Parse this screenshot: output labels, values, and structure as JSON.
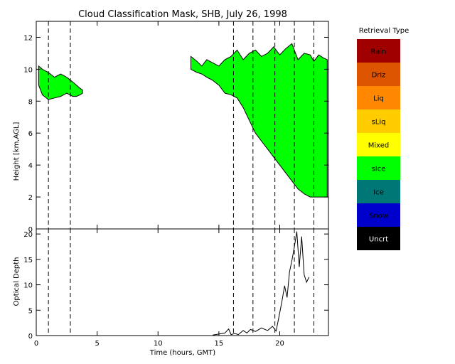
{
  "chart_data": [
    {
      "type": "area",
      "title": "Cloud Classification Mask, SHB, July 26, 1998",
      "ylabel": "Height [km,AGL]",
      "xlim": [
        0,
        24
      ],
      "ylim": [
        0,
        13
      ],
      "xticks": [
        0,
        5,
        10,
        15,
        20
      ],
      "yticks": [
        0,
        2,
        4,
        6,
        8,
        10,
        12
      ],
      "vlines": [
        1.0,
        2.8,
        16.2,
        17.8,
        19.6,
        21.2,
        22.8
      ],
      "legend": {
        "title": "Retrieval Type",
        "placement": "right",
        "items": [
          {
            "label": "Rain",
            "color": "#a00000"
          },
          {
            "label": "Driz",
            "color": "#dd5500"
          },
          {
            "label": "Liq",
            "color": "#ff8800"
          },
          {
            "label": "sLiq",
            "color": "#ffcc00"
          },
          {
            "label": "Mixed",
            "color": "#ffff00"
          },
          {
            "label": "sIce",
            "color": "#00ff00"
          },
          {
            "label": "Ice",
            "color": "#007777"
          },
          {
            "label": "Snow",
            "color": "#0000cc"
          },
          {
            "label": "Uncrt",
            "color": "#000000"
          }
        ]
      },
      "regions": [
        {
          "class": "sIce",
          "color": "#00ff00",
          "x": [
            0.2,
            0.5,
            1.0,
            1.5,
            2.0,
            2.5,
            3.0,
            3.3,
            3.6,
            3.8
          ],
          "top": [
            10.2,
            10.0,
            9.8,
            9.5,
            9.7,
            9.5,
            9.2,
            9.0,
            8.8,
            8.7
          ],
          "base": [
            9.0,
            8.4,
            8.1,
            8.2,
            8.3,
            8.5,
            8.3,
            8.3,
            8.4,
            8.5
          ]
        },
        {
          "class": "sIce",
          "color": "#00ff00",
          "x": [
            12.7,
            13.2,
            13.6,
            14.0,
            14.5,
            15.0,
            15.5,
            16.0,
            16.5,
            17.0,
            17.5,
            18.0,
            18.5,
            19.0,
            19.5,
            20.0,
            20.5,
            21.0,
            21.5,
            22.0,
            22.5,
            22.8,
            23.2,
            23.6,
            23.9
          ],
          "top": [
            10.8,
            10.5,
            10.2,
            10.6,
            10.4,
            10.2,
            10.6,
            10.8,
            11.2,
            10.6,
            11.0,
            11.2,
            10.8,
            11.0,
            11.4,
            10.9,
            11.3,
            11.6,
            10.6,
            11.0,
            10.9,
            10.5,
            10.9,
            10.7,
            10.6
          ],
          "base": [
            10.0,
            9.8,
            9.7,
            9.5,
            9.3,
            9.0,
            8.5,
            8.4,
            8.2,
            7.6,
            6.8,
            6.0,
            5.5,
            5.0,
            4.5,
            4.0,
            3.5,
            3.0,
            2.5,
            2.2,
            2.0,
            2.0,
            2.0,
            2.0,
            2.0
          ]
        }
      ]
    },
    {
      "type": "line",
      "ylabel": "Optical Depth",
      "xlabel": "Time (hours, GMT)",
      "xlim": [
        0,
        24
      ],
      "ylim": [
        0,
        21
      ],
      "xticks": [
        0,
        5,
        10,
        15,
        20
      ],
      "yticks": [
        0,
        5,
        10,
        15,
        20
      ],
      "series": [
        {
          "x": [
            14.5,
            15.0,
            15.5,
            15.8,
            16.0,
            16.3,
            16.6,
            17.0,
            17.3,
            17.6,
            18.0,
            18.5,
            19.0,
            19.4,
            19.7,
            20.0,
            20.2,
            20.4,
            20.6,
            20.8,
            21.0,
            21.2,
            21.4,
            21.6,
            21.8,
            22.0,
            22.2,
            22.4
          ],
          "y": [
            0.1,
            0.3,
            0.5,
            1.3,
            0.2,
            0.4,
            0.2,
            1.0,
            0.5,
            1.2,
            0.8,
            1.5,
            1.0,
            1.8,
            0.9,
            4.5,
            7.0,
            9.8,
            7.5,
            12.5,
            14.8,
            17.5,
            20.5,
            13.5,
            19.5,
            12.0,
            10.5,
            11.5
          ]
        }
      ]
    }
  ]
}
